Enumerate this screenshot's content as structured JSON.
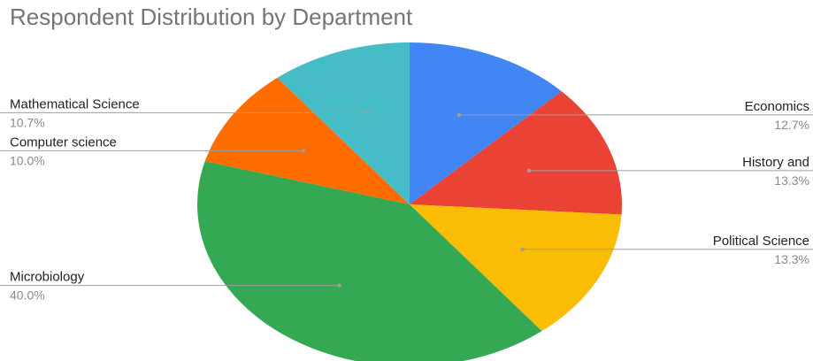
{
  "chart_data": {
    "type": "pie",
    "title": "Respondent Distribution by Department",
    "slices": [
      {
        "label": "Economics",
        "value": 12.7,
        "percent_label": "12.7%",
        "color": "#4285F4"
      },
      {
        "label": "History and",
        "value": 13.3,
        "percent_label": "13.3%",
        "color": "#EA4335"
      },
      {
        "label": "Political Science",
        "value": 13.3,
        "percent_label": "13.3%",
        "color": "#FBBC04"
      },
      {
        "label": "Microbiology",
        "value": 40.0,
        "percent_label": "40.0%",
        "color": "#34A853"
      },
      {
        "label": "Computer science",
        "value": 10.0,
        "percent_label": "10.0%",
        "color": "#FF6D01"
      },
      {
        "label": "Mathematical Science",
        "value": 10.7,
        "percent_label": "10.7%",
        "color": "#46BDC6"
      }
    ],
    "legend": "none"
  }
}
